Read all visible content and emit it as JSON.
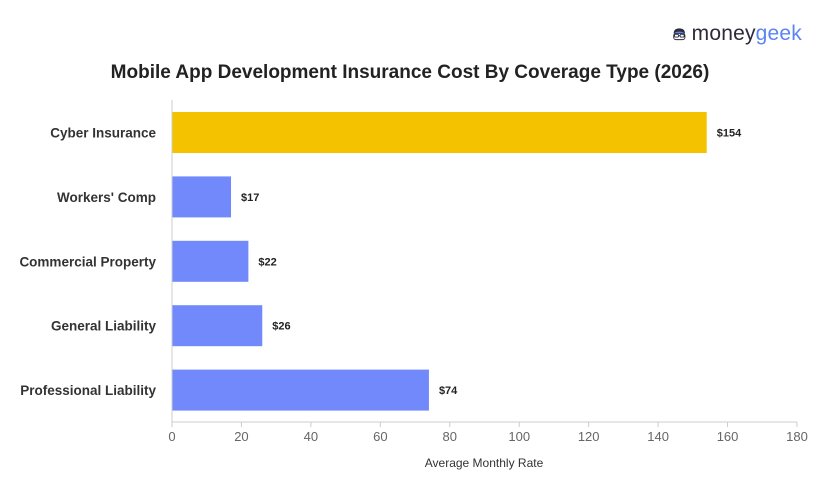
{
  "brand": {
    "part1": "money",
    "part2": "geek",
    "logo_icon": "geek-face-icon",
    "accent": "#5b84f5"
  },
  "chart_data": {
    "type": "bar",
    "orientation": "horizontal",
    "title": "Mobile App Development Insurance Cost By Coverage Type (2026)",
    "xlabel": "Average Monthly Rate",
    "ylabel": "",
    "xlim": [
      0,
      180
    ],
    "xticks": [
      0,
      20,
      40,
      60,
      80,
      100,
      120,
      140,
      160,
      180
    ],
    "categories": [
      "Cyber Insurance",
      "Workers' Comp",
      "Commercial Property",
      "General Liability",
      "Professional Liability"
    ],
    "values": [
      154,
      17,
      22,
      26,
      74
    ],
    "value_labels": [
      "$154",
      "$17",
      "$22",
      "$26",
      "$74"
    ],
    "colors": [
      "#f5c200",
      "#7289fb",
      "#7289fb",
      "#7289fb",
      "#7289fb"
    ],
    "grid": false,
    "legend": "none"
  }
}
